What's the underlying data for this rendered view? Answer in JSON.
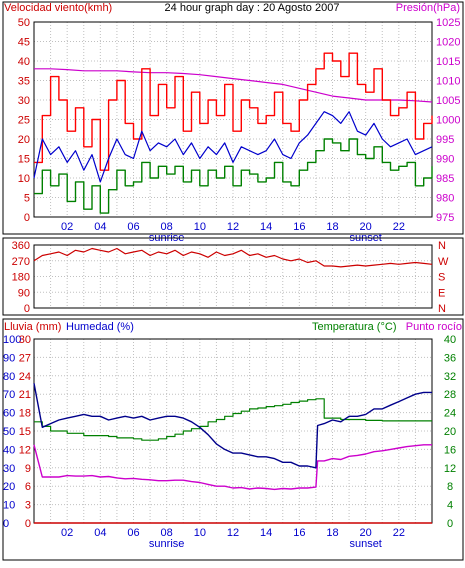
{
  "colors": {
    "wind_speed": "#ff0000",
    "wind_gust_avg": "#0000cc",
    "wind_min": "#008000",
    "pressure": "#cc00cc",
    "direction": "#cc0000",
    "rain": "#cc0000",
    "humidity": "#00008b",
    "temperature": "#008000",
    "dew_point": "#cc00cc",
    "grid": "#c0c0c0",
    "axis_red": "#cc0000",
    "axis_blue": "#0000cc",
    "axis_green": "#008000",
    "axis_magenta": "#cc00cc"
  },
  "chart_data": [
    {
      "id": "wind-pressure",
      "type": "line",
      "title": "24 hour graph day : 20 Agosto 2007",
      "ylabel_left": "Velocidad viento(kmh)",
      "ylabel_right": "Presión(hPa)",
      "x_tick_labels": [
        "02",
        "04",
        "06",
        "08",
        "10",
        "12",
        "14",
        "16",
        "18",
        "20",
        "22"
      ],
      "x_ticks": [
        2,
        4,
        6,
        8,
        10,
        12,
        14,
        16,
        18,
        20,
        22
      ],
      "x_annotations": [
        {
          "label": "sunrise",
          "x": 8
        },
        {
          "label": "sunset",
          "x": 20
        }
      ],
      "xlim": [
        0,
        24
      ],
      "ylim_left": [
        0,
        50
      ],
      "yticks_left": [
        0,
        5,
        10,
        15,
        20,
        25,
        30,
        35,
        40,
        45,
        50
      ],
      "ylim_right": [
        975,
        1025
      ],
      "yticks_right": [
        975,
        980,
        985,
        990,
        995,
        1000,
        1005,
        1010,
        1015,
        1020,
        1025
      ],
      "grid": true,
      "series": [
        {
          "axis": "left",
          "x": [
            0,
            0.5,
            1,
            1.5,
            2,
            2.5,
            3,
            3.5,
            4,
            4.5,
            5,
            5.5,
            6,
            6.5,
            7,
            7.5,
            8,
            8.5,
            9,
            9.5,
            10,
            10.5,
            11,
            11.5,
            12,
            12.5,
            13,
            13.5,
            14,
            14.5,
            15,
            15.5,
            16,
            16.5,
            17,
            17.5,
            18,
            18.5,
            19,
            19.5,
            20,
            20.5,
            21,
            21.5,
            22,
            22.5,
            23,
            23.5,
            24
          ],
          "values": [
            14,
            26,
            36,
            30,
            22,
            28,
            18,
            25,
            12,
            30,
            35,
            24,
            20,
            38,
            26,
            34,
            28,
            36,
            22,
            32,
            24,
            30,
            26,
            34,
            22,
            30,
            28,
            24,
            26,
            32,
            24,
            22,
            30,
            34,
            38,
            42,
            40,
            36,
            42,
            34,
            32,
            38,
            30,
            26,
            28,
            32,
            20,
            24,
            26
          ]
        },
        {
          "axis": "left",
          "x": [
            0,
            0.5,
            1,
            1.5,
            2,
            2.5,
            3,
            3.5,
            4,
            4.5,
            5,
            5.5,
            6,
            6.5,
            7,
            7.5,
            8,
            8.5,
            9,
            9.5,
            10,
            10.5,
            11,
            11.5,
            12,
            12.5,
            13,
            13.5,
            14,
            14.5,
            15,
            15.5,
            16,
            16.5,
            17,
            17.5,
            18,
            18.5,
            19,
            19.5,
            20,
            20.5,
            21,
            21.5,
            22,
            22.5,
            23,
            23.5,
            24
          ],
          "values": [
            10,
            20,
            16,
            18,
            14,
            17,
            12,
            16,
            9,
            15,
            20,
            16,
            15,
            22,
            17,
            19,
            18,
            20,
            16,
            19,
            15,
            18,
            16,
            19,
            14,
            18,
            17,
            16,
            17,
            20,
            16,
            15,
            19,
            21,
            24,
            27,
            26,
            24,
            27,
            22,
            21,
            24,
            20,
            18,
            19,
            20,
            16,
            17,
            18
          ]
        },
        {
          "axis": "left",
          "x": [
            0,
            0.5,
            1,
            1.5,
            2,
            2.5,
            3,
            3.5,
            4,
            4.5,
            5,
            5.5,
            6,
            6.5,
            7,
            7.5,
            8,
            8.5,
            9,
            9.5,
            10,
            10.5,
            11,
            11.5,
            12,
            12.5,
            13,
            13.5,
            14,
            14.5,
            15,
            15.5,
            16,
            16.5,
            17,
            17.5,
            18,
            18.5,
            19,
            19.5,
            20,
            20.5,
            21,
            21.5,
            22,
            22.5,
            23,
            23.5,
            24
          ],
          "values": [
            6,
            12,
            8,
            11,
            4,
            9,
            2,
            8,
            1,
            7,
            12,
            8,
            9,
            14,
            10,
            13,
            11,
            13,
            9,
            12,
            8,
            12,
            10,
            13,
            8,
            12,
            11,
            9,
            10,
            14,
            9,
            8,
            12,
            14,
            17,
            20,
            19,
            17,
            20,
            16,
            15,
            18,
            14,
            12,
            13,
            14,
            8,
            10,
            13
          ]
        },
        {
          "axis": "right",
          "x": [
            0,
            1,
            2,
            3,
            4,
            5,
            6,
            7,
            8,
            9,
            10,
            11,
            12,
            13,
            14,
            15,
            16,
            17,
            18,
            19,
            20,
            21,
            22,
            23,
            24
          ],
          "values": [
            1013,
            1013,
            1012.8,
            1012.5,
            1012.5,
            1012.5,
            1012.2,
            1012,
            1012,
            1011.8,
            1011.5,
            1011,
            1010.5,
            1010,
            1009.5,
            1009,
            1008,
            1007,
            1006,
            1005.5,
            1005,
            1005,
            1005,
            1004.8,
            1004.5
          ]
        }
      ]
    },
    {
      "id": "wind-direction",
      "type": "line",
      "ylim": [
        0,
        360
      ],
      "yticks": [
        0,
        90,
        180,
        270,
        360
      ],
      "y_tick_labels": [
        "0",
        "90",
        "180",
        "270",
        "360"
      ],
      "y_tick_labels_right": [
        "N",
        "E",
        "S",
        "W",
        "N"
      ],
      "xlim": [
        0,
        24
      ],
      "grid": true,
      "series": [
        {
          "x": [
            0,
            0.5,
            1,
            1.5,
            2,
            2.5,
            3,
            3.5,
            4,
            4.5,
            5,
            5.5,
            6,
            6.5,
            7,
            7.5,
            8,
            8.5,
            9,
            9.5,
            10,
            10.5,
            11,
            11.5,
            12,
            12.5,
            13,
            13.5,
            14,
            14.5,
            15,
            15.5,
            16,
            16.5,
            17,
            17.5,
            18,
            18.5,
            19,
            19.5,
            20,
            20.5,
            21,
            21.5,
            22,
            22.5,
            23,
            23.5,
            24
          ],
          "values": [
            270,
            300,
            310,
            320,
            300,
            330,
            320,
            340,
            330,
            320,
            340,
            310,
            320,
            330,
            300,
            320,
            310,
            330,
            300,
            320,
            310,
            290,
            320,
            300,
            310,
            330,
            300,
            310,
            290,
            300,
            280,
            270,
            280,
            260,
            270,
            240,
            240,
            235,
            240,
            245,
            240,
            245,
            250,
            255,
            250,
            255,
            260,
            255,
            250
          ]
        }
      ]
    },
    {
      "id": "rain-humidity-temp",
      "type": "line",
      "ylabel_left_1": "Lluvia (mm)",
      "ylabel_left_2": "Humedad (%)",
      "ylabel_right": "Temperatura (°C)",
      "ylabel_right_2": "Punto rocío",
      "x_tick_labels": [
        "02",
        "04",
        "06",
        "08",
        "10",
        "12",
        "14",
        "16",
        "18",
        "20",
        "22"
      ],
      "x_ticks": [
        2,
        4,
        6,
        8,
        10,
        12,
        14,
        16,
        18,
        20,
        22
      ],
      "x_annotations": [
        {
          "label": "sunrise",
          "x": 8
        },
        {
          "label": "sunset",
          "x": 20
        }
      ],
      "xlim": [
        0,
        24
      ],
      "ylim_rain": [
        0,
        30
      ],
      "yticks_rain": [
        0,
        3,
        6,
        9,
        12,
        15,
        18,
        21,
        24,
        27,
        30
      ],
      "ylim_humidity": [
        0,
        100
      ],
      "yticks_humidity": [
        0,
        10,
        20,
        30,
        40,
        50,
        60,
        70,
        80,
        90,
        100
      ],
      "ylim_temp": [
        0,
        40
      ],
      "yticks_temp": [
        0,
        4,
        8,
        12,
        16,
        20,
        24,
        28,
        32,
        36,
        40
      ],
      "grid": true,
      "series": [
        {
          "axis": "rain",
          "x": [
            0,
            24
          ],
          "values": [
            0,
            0
          ]
        },
        {
          "axis": "humidity",
          "x": [
            0,
            0.5,
            1,
            1.5,
            2,
            2.5,
            3,
            3.5,
            4,
            4.5,
            5,
            5.5,
            6,
            6.5,
            7,
            7.5,
            8,
            8.5,
            9,
            9.5,
            10,
            10.5,
            11,
            11.5,
            12,
            12.5,
            13,
            13.5,
            14,
            14.5,
            15,
            15.5,
            16,
            16.5,
            17,
            17.1,
            17.5,
            18,
            18.5,
            19,
            19.5,
            20,
            20.5,
            21,
            21.5,
            22,
            22.5,
            23,
            23.5,
            24
          ],
          "values": [
            76,
            52,
            54,
            56,
            57,
            58,
            59,
            58,
            58,
            56,
            57,
            58,
            57,
            58,
            56,
            57,
            58,
            58,
            57,
            55,
            52,
            48,
            43,
            40,
            38,
            38,
            37,
            36,
            36,
            35,
            33,
            33,
            31,
            31,
            30,
            53,
            54,
            56,
            55,
            58,
            58,
            59,
            62,
            62,
            64,
            66,
            68,
            70,
            71,
            71
          ]
        },
        {
          "axis": "temp",
          "x": [
            0,
            0.5,
            1,
            1.5,
            2,
            2.5,
            3,
            3.5,
            4,
            4.5,
            5,
            5.5,
            6,
            6.5,
            7,
            7.5,
            8,
            8.5,
            9,
            9.5,
            10,
            10.5,
            11,
            11.5,
            12,
            12.5,
            13,
            13.5,
            14,
            14.5,
            15,
            15.5,
            16,
            16.5,
            17,
            17.5,
            18,
            18.5,
            19,
            19.5,
            20,
            20.5,
            21,
            21.5,
            22,
            22.5,
            23,
            23.5,
            24
          ],
          "values": [
            22,
            21,
            20,
            20,
            19.5,
            19.5,
            19,
            19,
            19,
            18.8,
            18.5,
            18.5,
            18.3,
            18,
            18,
            18.3,
            18.8,
            19.3,
            20,
            20.5,
            21,
            22,
            22.5,
            23.2,
            23.8,
            24.3,
            24.8,
            25,
            25.3,
            25.5,
            25.8,
            26.2,
            26.5,
            26.8,
            27,
            22.8,
            22.8,
            22.5,
            22.5,
            22.5,
            22.3,
            22.3,
            22.2,
            22.2,
            22.2,
            22.2,
            22.2,
            22.2,
            22.2
          ]
        },
        {
          "axis": "temp",
          "x": [
            0,
            0.5,
            1,
            1.5,
            2,
            2.5,
            3,
            3.5,
            4,
            4.5,
            5,
            5.5,
            6,
            6.5,
            7,
            7.5,
            8,
            8.5,
            9,
            9.5,
            10,
            10.5,
            11,
            11.5,
            12,
            12.5,
            13,
            13.5,
            14,
            14.5,
            15,
            15.5,
            16,
            16.5,
            17,
            17.1,
            17.5,
            18,
            18.5,
            19,
            19.5,
            20,
            20.5,
            21,
            21.5,
            22,
            22.5,
            23,
            23.5,
            24
          ],
          "values": [
            17,
            10,
            10,
            10,
            10.3,
            10.2,
            10.2,
            10.3,
            10,
            10.1,
            9.8,
            9.6,
            9.7,
            9.5,
            9.4,
            9.2,
            9.2,
            9.3,
            9.3,
            9.0,
            8.8,
            8.4,
            8.0,
            8.0,
            7.6,
            7.7,
            7.4,
            7.6,
            7.5,
            7.3,
            7.5,
            7.4,
            7.6,
            7.6,
            7.8,
            13.5,
            13.5,
            14,
            13.8,
            14.5,
            14.7,
            15,
            15.5,
            15.7,
            16,
            16.3,
            16.6,
            16.8,
            17,
            17
          ]
        }
      ]
    }
  ]
}
